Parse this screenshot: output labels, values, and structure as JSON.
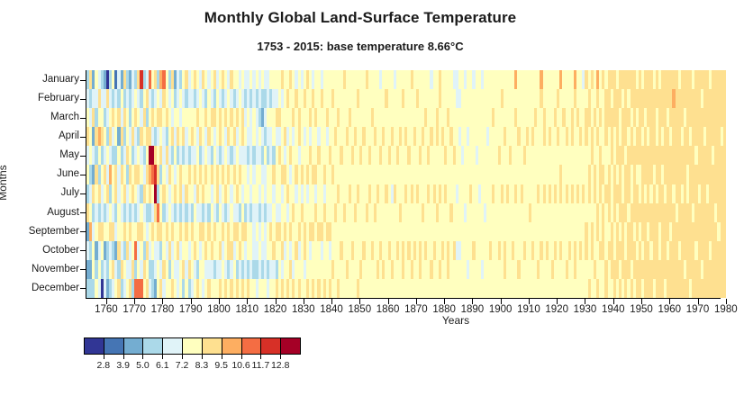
{
  "title": "Monthly Global Land-Surface Temperature",
  "subtitle": "1753 - 2015: base temperature 8.66°C",
  "axes": {
    "x_title": "Years",
    "y_title": "Months",
    "x_ticks": [
      1760,
      1770,
      1780,
      1790,
      1800,
      1810,
      1820,
      1830,
      1840,
      1850,
      1860,
      1870,
      1880,
      1890,
      1900,
      1910,
      1920,
      1930,
      1940,
      1950,
      1960,
      1970,
      1980
    ],
    "months": [
      "January",
      "February",
      "March",
      "April",
      "May",
      "June",
      "July",
      "August",
      "September",
      "October",
      "November",
      "December"
    ]
  },
  "legend": {
    "colors": [
      "#313695",
      "#4575b4",
      "#74add1",
      "#abd9e9",
      "#e0f3f8",
      "#ffffbf",
      "#fee090",
      "#fdae61",
      "#f46d43",
      "#d73027",
      "#a50026"
    ],
    "tick_labels": [
      "2.8",
      "3.9",
      "5.0",
      "6.1",
      "7.2",
      "8.3",
      "9.5",
      "10.6",
      "11.7",
      "12.8"
    ]
  },
  "chart_data": {
    "type": "heatmap",
    "title": "Monthly Global Land-Surface Temperature",
    "subtitle": "1753 - 2015: base temperature 8.66°C",
    "xlabel": "Years",
    "ylabel": "Months",
    "rows": [
      "January",
      "February",
      "March",
      "April",
      "May",
      "June",
      "July",
      "August",
      "September",
      "October",
      "November",
      "December"
    ],
    "start_year": 1753,
    "end_year_visible": 1979,
    "base_temperature_c": 8.66,
    "legend_thresholds_c": [
      2.8,
      3.9,
      5.0,
      6.1,
      7.2,
      8.3,
      9.5,
      10.6,
      11.7,
      12.8
    ],
    "palette": [
      "#313695",
      "#4575b4",
      "#74add1",
      "#abd9e9",
      "#e0f3f8",
      "#ffffbf",
      "#fee090",
      "#fdae61",
      "#f46d43",
      "#d73027",
      "#a50026"
    ],
    "encoding": "cells[i] = year 1753+i; 12 hex chars Jan..Dec; each char is an index into palette / temperature bin",
    "cells": [
      "345645362423",
      "634553457323",
      "246242634553",
      "543636545235",
      "465753636454",
      "345635446530",
      "243546535244",
      "064354645332",
      "345647356453",
      "536435546364",
      "145536634245",
      "436254455636",
      "254636545463",
      "636345636354",
      "345563445645",
      "233456536446",
      "445635645563",
      "356446535838",
      "645356446458",
      "934645356548",
      "356534645365",
      "463656534656",
      "8456a7635434",
      "5364a8546533",
      "645369a65442",
      "356456386455",
      "746563556346",
      "865445635564",
      "556364546455",
      "345546455635",
      "654635546456",
      "235454635545",
      "445635545644",
      "354546636455",
      "545635445563",
      "635445636545",
      "445536545463",
      "545645536554",
      "635546455645",
      "546455645536",
      "455636546455",
      "645545636554",
      "536456545645",
      "455645536546",
      "546536455645",
      "636455546535",
      "455546635545",
      "546635455646",
      "635546546455",
      "546455635546",
      "455646546635",
      "646535455646",
      "535646546455",
      "546455646536",
      "455546535645",
      "546645456536",
      "434545536445",
      "445434545536",
      "534445435545",
      "445534544435",
      "534445545434",
      "443545434545",
      "532434545435",
      "434354434445",
      "445435545534",
      "535445546545",
      "545536455645",
      "546455546536",
      "556465546555",
      "645556455646",
      "555646556455",
      "565455645556",
      "655564556465",
      "556455565546",
      "465556455655",
      "556645556456",
      "455556465555",
      "565455556645",
      "655556455556",
      "556465556455",
      "465556556556",
      "556556465555",
      "555465556556",
      "465555556455",
      "555556465556",
      "556455556555",
      "555565556456",
      "565556555565",
      "555655565555",
      "556555655556",
      "555565555655",
      "655555565555",
      "555655555565",
      "556555655555",
      "555565555655",
      "555655565555",
      "565555655556",
      "555565555565",
      "555655555655",
      "655555565555",
      "555565655555",
      "556555555655",
      "555655565555",
      "555555655565",
      "455565555655",
      "555655555565",
      "565555655555",
      "555565555655",
      "555655455565",
      "455555655555",
      "555565555655",
      "555655565555",
      "565555555665",
      "555655655555",
      "555565555655",
      "655555655565",
      "555655555655",
      "565555655555",
      "555565555665",
      "555655565555",
      "556555555655",
      "555565655555",
      "455655555565",
      "555555655655",
      "556655565555",
      "665555655565",
      "555655555655",
      "555565655555",
      "556555555665",
      "555655565555",
      "455565555655",
      "445555455455",
      "545455555455",
      "555545555555",
      "455555545555",
      "555455555545",
      "555555655555",
      "455555555655",
      "555545555555",
      "555555455555",
      "455555555545",
      "555555545555",
      "555455555555",
      "555555555655",
      "556555655555",
      "555555555555",
      "555565555655",
      "565555655555",
      "555655555665",
      "555555655555",
      "555565555555",
      "555555555655",
      "756555655555",
      "555655555565",
      "555555655555",
      "555565555655",
      "555655555555",
      "555555565555",
      "555655555655",
      "556555555555",
      "555555655565",
      "765555555655",
      "556655655555",
      "555555555655",
      "555655655555",
      "555555555565",
      "556555655655",
      "565655555555",
      "755556655655",
      "556555555555",
      "555655655565",
      "555555555655",
      "556655655555",
      "765555555665",
      "556555655555",
      "555655555655",
      "455555655555",
      "656655556655",
      "566556655556",
      "655665556655",
      "556556655565",
      "765655566556",
      "556566655655",
      "655556566655",
      "566655655566",
      "666556665655",
      "656665556665",
      "666556665566",
      "566665656665",
      "665566665656",
      "656665566665",
      "666656665566",
      "656566656665",
      "665665566656",
      "666566665665",
      "565665666566",
      "666665565666",
      "566566666565",
      "665666566666",
      "666566665666",
      "666666566566",
      "566665666665",
      "665566566666",
      "566666665566",
      "666565666666",
      "666666566665",
      "665666666566",
      "666566665666",
      "676666566666",
      "666666656666",
      "566666666566",
      "666566566666",
      "665666666656",
      "666665566666",
      "666566666665",
      "566666656666",
      "666656666566",
      "666666566666",
      "656666666656",
      "666566666666",
      "666666566666",
      "566666666566",
      "666656666666",
      "666666656666",
      "666666665666",
      "666566666666",
      "666666666666"
    ]
  }
}
